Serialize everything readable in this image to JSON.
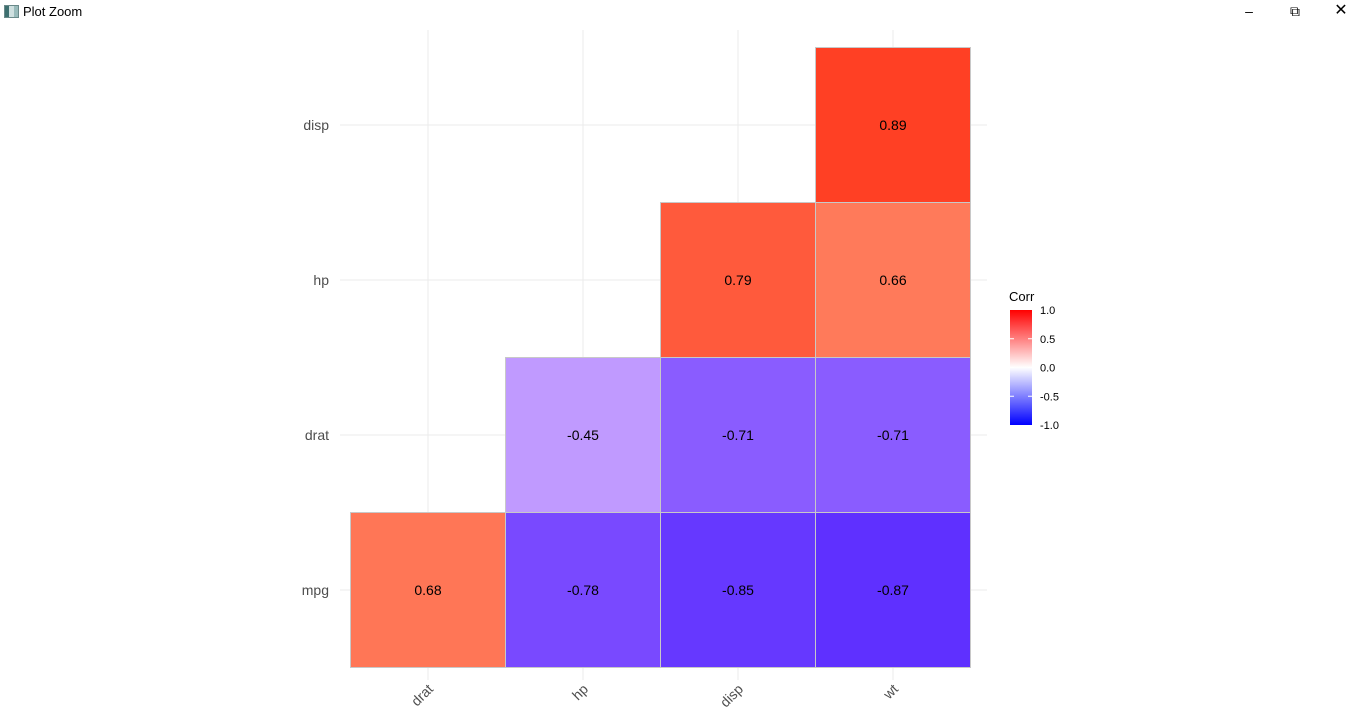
{
  "window": {
    "title": "Plot Zoom",
    "minimize_icon": "minimize-icon",
    "restore_icon": "restore-icon",
    "close_icon": "close-icon"
  },
  "chart_data": {
    "type": "heatmap",
    "x_categories": [
      "drat",
      "hp",
      "disp",
      "wt"
    ],
    "y_categories": [
      "mpg",
      "drat",
      "hp",
      "disp"
    ],
    "cells": [
      {
        "x": "drat",
        "y": "mpg",
        "value": 0.68,
        "label": "0.68",
        "color": "#ff7656"
      },
      {
        "x": "hp",
        "y": "mpg",
        "value": -0.78,
        "label": "-0.78",
        "color": "#7949ff"
      },
      {
        "x": "disp",
        "y": "mpg",
        "value": -0.85,
        "label": "-0.85",
        "color": "#6638ff"
      },
      {
        "x": "wt",
        "y": "mpg",
        "value": -0.87,
        "label": "-0.87",
        "color": "#5f30ff"
      },
      {
        "x": "hp",
        "y": "drat",
        "value": -0.45,
        "label": "-0.45",
        "color": "#c09aff"
      },
      {
        "x": "disp",
        "y": "drat",
        "value": -0.71,
        "label": "-0.71",
        "color": "#8a5cff"
      },
      {
        "x": "wt",
        "y": "drat",
        "value": -0.71,
        "label": "-0.71",
        "color": "#8a5cff"
      },
      {
        "x": "disp",
        "y": "hp",
        "value": 0.79,
        "label": "0.79",
        "color": "#ff5a3c"
      },
      {
        "x": "wt",
        "y": "hp",
        "value": 0.66,
        "label": "0.66",
        "color": "#ff7a5a"
      },
      {
        "x": "wt",
        "y": "disp",
        "value": 0.89,
        "label": "0.89",
        "color": "#ff4024"
      }
    ],
    "legend": {
      "title": "Corr",
      "ticks": [
        "1.0",
        "0.5",
        "0.0",
        "-0.5",
        "-1.0"
      ],
      "low": "#0000ff",
      "mid": "#ffffff",
      "high": "#ff0000",
      "range": [
        -1,
        1
      ],
      "position": "right"
    },
    "grid": true
  }
}
